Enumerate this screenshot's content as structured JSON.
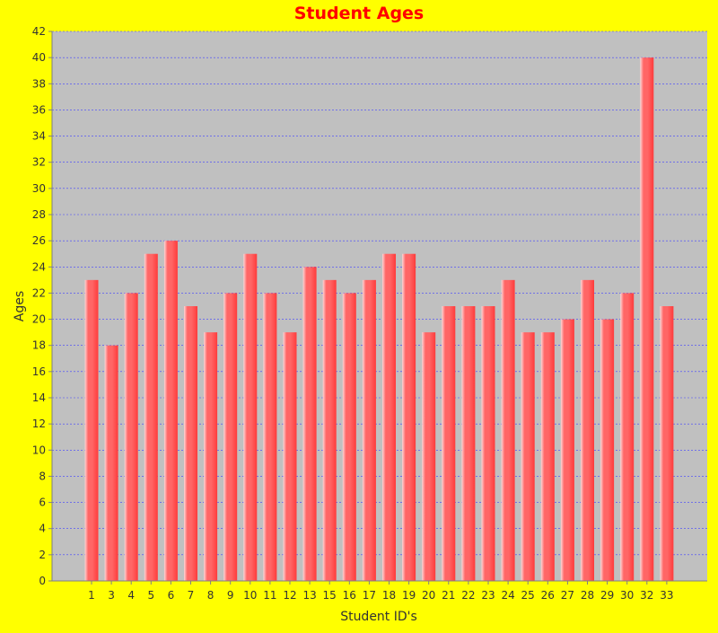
{
  "colors": {
    "background": "#ffff00",
    "plot_background": "#c0c0c0",
    "bar_fill": "#ff6666",
    "bar_highlight": "#ffd6d6",
    "bar_edge": "#ff3b3b",
    "gridline": "#4040ff",
    "title": "#ff0000",
    "axis_text": "#333333",
    "axis_line": "#808080"
  },
  "chart_data": {
    "type": "bar",
    "title": "Student Ages",
    "xlabel": "Student ID's",
    "ylabel": "Ages",
    "categories": [
      "1",
      "3",
      "4",
      "5",
      "6",
      "7",
      "8",
      "9",
      "10",
      "11",
      "12",
      "13",
      "15",
      "16",
      "17",
      "18",
      "19",
      "20",
      "21",
      "22",
      "23",
      "24",
      "25",
      "26",
      "27",
      "28",
      "29",
      "30",
      "32",
      "33"
    ],
    "values": [
      23,
      18,
      22,
      25,
      26,
      21,
      19,
      22,
      25,
      22,
      19,
      24,
      23,
      22,
      23,
      25,
      25,
      19,
      21,
      21,
      21,
      23,
      19,
      19,
      20,
      23,
      20,
      22,
      40,
      21
    ],
    "ylim": [
      0,
      42
    ],
    "yticks": [
      "0",
      "2",
      "4",
      "6",
      "8",
      "10",
      "12",
      "14",
      "16",
      "18",
      "20",
      "22",
      "24",
      "26",
      "28",
      "30",
      "32",
      "34",
      "36",
      "38",
      "40",
      "42"
    ],
    "grid": true,
    "legend": "none"
  }
}
